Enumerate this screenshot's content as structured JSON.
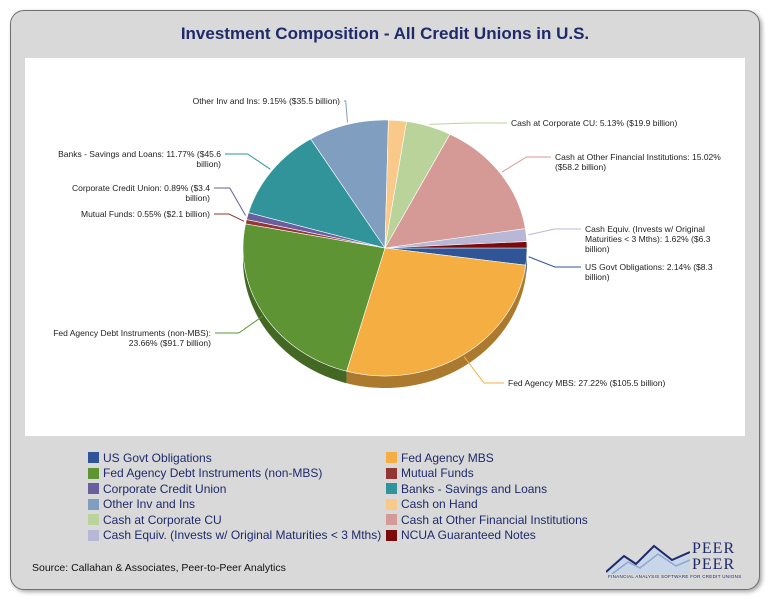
{
  "chart_data": {
    "type": "pie",
    "title": "Investment Composition - All Credit Unions in U.S.",
    "slices": [
      {
        "name": "US Govt Obligations",
        "percent": 2.14,
        "color": "#2f5597",
        "label_lines": [
          "US Govt Obligations: 2.14% ($8.3",
          "billion)"
        ]
      },
      {
        "name": "Fed Agency MBS",
        "percent": 27.22,
        "color": "#f5ae42",
        "label_lines": [
          "Fed Agency MBS: 27.22% ($105.5 billion)"
        ]
      },
      {
        "name": "Fed Agency Debt Instruments (non-MBS)",
        "percent": 23.66,
        "color": "#5e9434",
        "label_lines": [
          "Fed Agency Debt Instruments (non-MBS):",
          "23.66% ($91.7 billion)"
        ]
      },
      {
        "name": "Mutual Funds",
        "percent": 0.55,
        "color": "#943634",
        "label_lines": [
          "Mutual Funds: 0.55% ($2.1 billion)"
        ]
      },
      {
        "name": "Corporate Credit Union",
        "percent": 0.89,
        "color": "#6a5e9e",
        "label_lines": [
          "Corporate Credit Union: 0.89% ($3.4",
          "billion)"
        ]
      },
      {
        "name": "Banks - Savings and Loans",
        "percent": 11.77,
        "color": "#31949a",
        "label_lines": [
          "Banks - Savings and Loans: 11.77% ($45.6",
          "billion)"
        ]
      },
      {
        "name": "Other Inv and Ins",
        "percent": 9.15,
        "color": "#7f9ec0",
        "label_lines": [
          "Other Inv and Ins: 9.15% ($35.5 billion)"
        ]
      },
      {
        "name": "Cash on Hand",
        "percent": 2.05,
        "color": "#f9c98a",
        "label_lines": []
      },
      {
        "name": "Cash at Corporate CU",
        "percent": 5.13,
        "color": "#b9d39a",
        "label_lines": [
          "Cash at Corporate CU: 5.13% ($19.9 billion)"
        ]
      },
      {
        "name": "Cash at Other Financial Institutions",
        "percent": 15.02,
        "color": "#d59a96",
        "label_lines": [
          "Cash at Other Financial Institutions: 15.02%",
          "($58.2 billion)"
        ]
      },
      {
        "name": "Cash Equiv. (Invests w/ Original Maturities < 3 Mths)",
        "percent": 1.62,
        "color": "#b8b8d6",
        "label_lines": [
          "Cash Equiv. (Invests w/ Original",
          "Maturities < 3 Mths): 1.62% ($6.3",
          "billion)"
        ]
      },
      {
        "name": "NCUA Guaranteed Notes",
        "percent": 0.8,
        "color": "#7b0a0a",
        "label_lines": []
      }
    ],
    "legend": [
      "US Govt Obligations",
      "Fed Agency MBS",
      "Fed Agency Debt Instruments (non-MBS)",
      "Mutual Funds",
      "Corporate Credit Union",
      "Banks - Savings and Loans",
      "Other Inv and Ins",
      "Cash on Hand",
      "Cash at Corporate CU",
      "Cash at Other Financial Institutions",
      "Cash Equiv. (Invests w/ Original Maturities < 3 Mths)",
      "NCUA Guaranteed Notes"
    ],
    "legend_placement": "bottom"
  },
  "source": "Source: Callahan & Associates, Peer-to-Peer Analytics",
  "logo": {
    "line1": "PEER",
    "line2": "PEER",
    "tagline": "FINANCIAL ANALYSIS SOFTWARE FOR CREDIT UNIONS"
  }
}
